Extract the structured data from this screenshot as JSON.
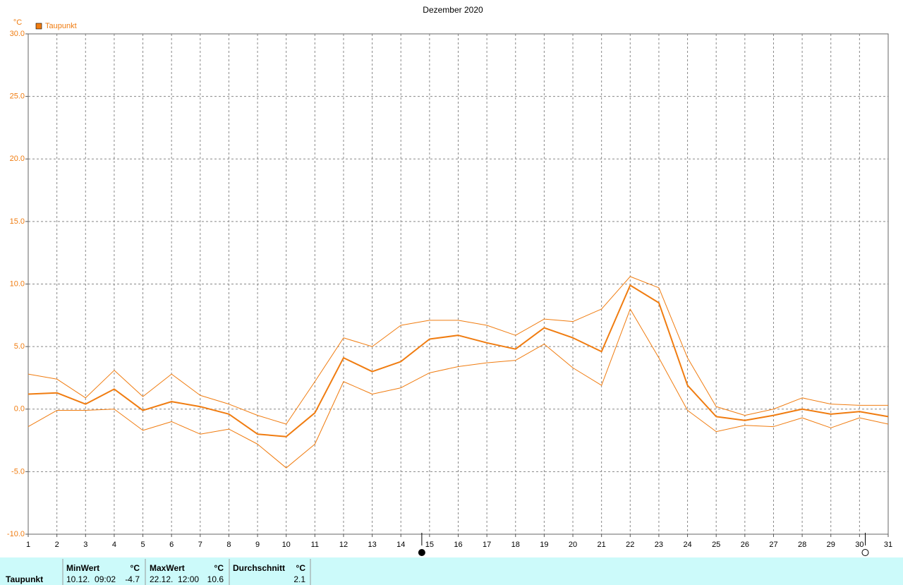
{
  "chart_data": {
    "type": "line",
    "title": "Dezember 2020",
    "y_unit": "°C",
    "x": [
      1,
      2,
      3,
      4,
      5,
      6,
      7,
      8,
      9,
      10,
      11,
      12,
      13,
      14,
      15,
      16,
      17,
      18,
      19,
      20,
      21,
      22,
      23,
      24,
      25,
      26,
      27,
      28,
      29,
      30,
      31
    ],
    "xlim": [
      1,
      31
    ],
    "xticks": [
      1,
      2,
      3,
      4,
      5,
      6,
      7,
      8,
      9,
      10,
      11,
      12,
      13,
      14,
      15,
      16,
      17,
      18,
      19,
      20,
      21,
      22,
      23,
      24,
      25,
      26,
      27,
      28,
      29,
      30,
      31
    ],
    "ylim": [
      -10,
      30
    ],
    "yticks": [
      {
        "value": -10,
        "label": "-10.0"
      },
      {
        "value": -5,
        "label": "-5.0"
      },
      {
        "value": 0,
        "label": "0.0"
      },
      {
        "value": 5,
        "label": "5.0"
      },
      {
        "value": 10,
        "label": "10.0"
      },
      {
        "value": 15,
        "label": "15.0"
      },
      {
        "value": 20,
        "label": "20.0"
      },
      {
        "value": 25,
        "label": "25.0"
      },
      {
        "value": 30,
        "label": "30.0"
      }
    ],
    "grid": true,
    "legend": "top-left",
    "series": [
      {
        "name": "Taupunkt",
        "color": "#f07c10",
        "line_width": 2,
        "values": [
          1.2,
          1.3,
          0.4,
          1.6,
          -0.1,
          0.6,
          0.2,
          -0.4,
          -2.0,
          -2.2,
          -0.3,
          4.1,
          3.0,
          3.8,
          5.6,
          5.9,
          5.3,
          4.8,
          6.5,
          5.7,
          4.6,
          9.9,
          8.5,
          1.9,
          -0.6,
          -0.9,
          -0.5,
          0.0,
          -0.4,
          -0.2,
          -0.6
        ]
      },
      {
        "color": "#f07c10",
        "line_width": 1,
        "values": [
          2.8,
          2.4,
          0.9,
          3.1,
          1.0,
          2.8,
          1.1,
          0.4,
          -0.5,
          -1.2,
          2.2,
          5.7,
          5.0,
          6.7,
          7.1,
          7.1,
          6.7,
          5.9,
          7.2,
          7.0,
          8.0,
          10.6,
          9.7,
          4.1,
          0.2,
          -0.5,
          0.0,
          0.9,
          0.4,
          0.3,
          0.3
        ]
      },
      {
        "color": "#f07c10",
        "line_width": 1,
        "values": [
          -1.4,
          -0.1,
          -0.1,
          0.0,
          -1.7,
          -1.0,
          -2.0,
          -1.6,
          -2.8,
          -4.7,
          -2.8,
          2.2,
          1.2,
          1.7,
          2.9,
          3.4,
          3.7,
          3.9,
          5.2,
          3.3,
          1.9,
          8.0,
          4.1,
          -0.1,
          -1.8,
          -1.3,
          -1.4,
          -0.7,
          -1.5,
          -0.7,
          -1.2
        ]
      }
    ],
    "moon_phases": [
      {
        "x": 14.73,
        "filled": true
      },
      {
        "x": 30.2,
        "filled": false
      }
    ]
  },
  "stats": {
    "row_label": "Taupunkt",
    "columns": [
      {
        "header": "MinWert",
        "unit": "°C",
        "time": "10.12.  09:02",
        "value": -4.7
      },
      {
        "header": "MaxWert",
        "unit": "°C",
        "time": "22.12.  12:00",
        "value": 10.6
      },
      {
        "header": "Durchschnitt",
        "unit": "°C",
        "value": 2.1
      }
    ]
  }
}
